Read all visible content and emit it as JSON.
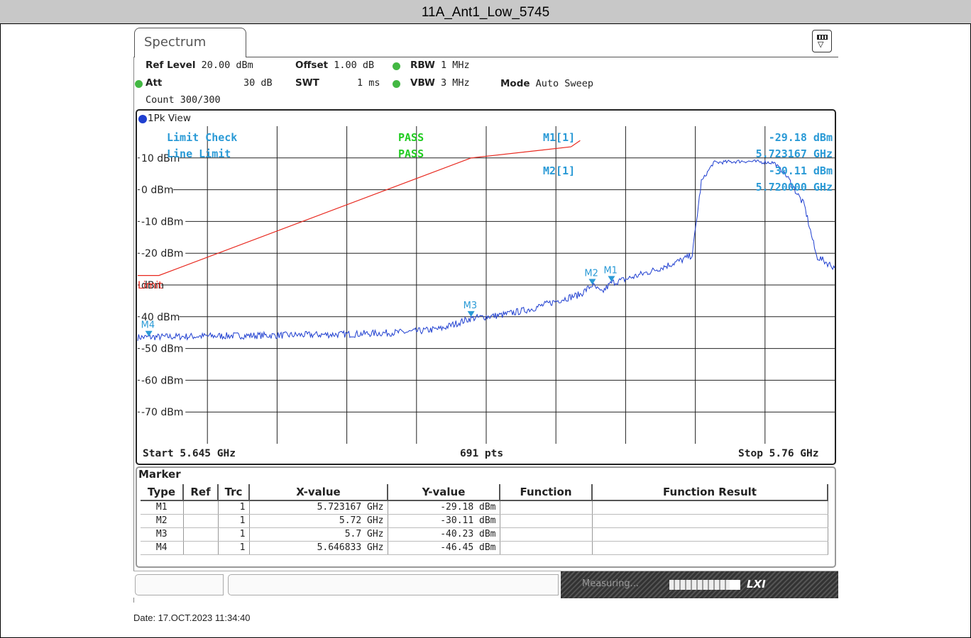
{
  "window": {
    "title": "11A_Ant1_Low_5745"
  },
  "tab": {
    "label": "Spectrum"
  },
  "settings": {
    "ref_level_label": "Ref Level",
    "ref_level_value": "20.00 dBm",
    "offset_label": "Offset",
    "offset_value": "1.00 dB",
    "rbw_label": "RBW",
    "rbw_value": "1 MHz",
    "att_label": "Att",
    "att_value": "30 dB",
    "swt_label": "SWT",
    "swt_value": "1 ms",
    "vbw_label": "VBW",
    "vbw_value": "3 MHz",
    "mode_label": "Mode",
    "mode_value": "Auto Sweep",
    "count": "Count 300/300"
  },
  "plot": {
    "view_label": "1Pk View",
    "limit_check_label": "Limit Check",
    "limit_check_result": "PASS",
    "line_limit_label": "Line Limit",
    "line_limit_result": "PASS",
    "m1_label": "M1[1]",
    "m1_level": "-29.18 dBm",
    "m1_freq": "5.723167 GHz",
    "m2_label": "M2[1]",
    "m2_level": "-30.11 dBm",
    "m2_freq": "5.720000 GHz",
    "limit_tag": "Limit",
    "start": "Start 5.645 GHz",
    "points": "691 pts",
    "stop": "Stop 5.76 GHz",
    "y_labels": [
      "10 dBm",
      "0 dBm",
      "-10 dBm",
      "-20 dBm",
      "dBm",
      "40 dBm",
      "-50 dBm",
      "-60 dBm",
      "-70 dBm"
    ],
    "marker_tags": [
      "M1",
      "M2",
      "M3",
      "M4"
    ]
  },
  "marker_table": {
    "title": "Marker",
    "headers": [
      "Type",
      "Ref",
      "Trc",
      "X-value",
      "Y-value",
      "Function",
      "Function Result"
    ],
    "rows": [
      [
        "M1",
        "",
        "1",
        "5.723167 GHz",
        "-29.18 dBm",
        "",
        ""
      ],
      [
        "M2",
        "",
        "1",
        "5.72 GHz",
        "-30.11 dBm",
        "",
        ""
      ],
      [
        "M3",
        "",
        "1",
        "5.7 GHz",
        "-40.23 dBm",
        "",
        ""
      ],
      [
        "M4",
        "",
        "1",
        "5.646833 GHz",
        "-46.45 dBm",
        "",
        ""
      ]
    ]
  },
  "status": {
    "measuring": "Measuring...",
    "progress": 0.85
  },
  "footer": {
    "date": "Date: 17.OCT.2023  11:34:40"
  },
  "colors": {
    "trace": "#1f3fd0",
    "limit_line": "#e8281e",
    "pass": "#22cc22",
    "annotation": "#2a9ad6"
  },
  "chart_data": {
    "type": "line",
    "x_start_ghz": 5.645,
    "x_stop_ghz": 5.76,
    "ylim": [
      -80,
      20
    ],
    "y_unit": "dBm",
    "series": [
      {
        "trace": "1Pk",
        "x": [
          5.645,
          5.65,
          5.66,
          5.67,
          5.68,
          5.69,
          5.695,
          5.7,
          5.705,
          5.71,
          5.715,
          5.718,
          5.72,
          5.7215,
          5.723167,
          5.725,
          5.73,
          5.735,
          5.7365,
          5.738,
          5.74,
          5.745,
          5.75,
          5.752,
          5.755,
          5.757,
          5.76
        ],
        "y": [
          -46.5,
          -46.3,
          -46.0,
          -45.8,
          -45.5,
          -44.8,
          -43.8,
          -40.5,
          -39.5,
          -37.5,
          -34.5,
          -33.0,
          -30.0,
          -32.5,
          -29.3,
          -28.5,
          -25.5,
          -22.0,
          -20.5,
          2.5,
          8.5,
          9.0,
          8.5,
          4.5,
          -5.0,
          -21.0,
          -24.5
        ]
      }
    ],
    "limit_line": {
      "x": [
        5.645,
        5.6485,
        5.7,
        5.7165,
        5.718
      ],
      "y": [
        -27.0,
        -27.0,
        10.0,
        13.5,
        15.5
      ]
    },
    "markers": [
      {
        "name": "M1",
        "x": 5.723167,
        "y": -29.18
      },
      {
        "name": "M2",
        "x": 5.72,
        "y": -30.11
      },
      {
        "name": "M3",
        "x": 5.7,
        "y": -40.23
      },
      {
        "name": "M4",
        "x": 5.646833,
        "y": -46.45
      }
    ]
  }
}
